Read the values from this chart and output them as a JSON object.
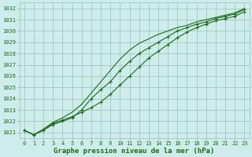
{
  "title": "Graphe pression niveau de la mer (hPa)",
  "x": [
    0,
    1,
    2,
    3,
    4,
    5,
    6,
    7,
    8,
    9,
    10,
    11,
    12,
    13,
    14,
    15,
    16,
    17,
    18,
    19,
    20,
    21,
    22,
    23
  ],
  "line1": [
    1021.2,
    1020.8,
    1021.2,
    1021.8,
    1022.1,
    1022.4,
    1022.8,
    1023.2,
    1023.7,
    1024.4,
    1025.2,
    1026.0,
    1026.8,
    1027.6,
    1028.2,
    1028.8,
    1029.4,
    1029.9,
    1030.3,
    1030.6,
    1030.9,
    1031.1,
    1031.3,
    1031.7
  ],
  "line2": [
    1021.2,
    1020.8,
    1021.2,
    1021.7,
    1022.0,
    1022.3,
    1023.0,
    1024.0,
    1024.8,
    1025.5,
    1026.5,
    1027.3,
    1028.0,
    1028.5,
    1029.0,
    1029.5,
    1030.0,
    1030.3,
    1030.6,
    1030.8,
    1031.1,
    1031.3,
    1031.5,
    1031.9
  ],
  "line3": [
    1021.2,
    1020.8,
    1021.3,
    1021.9,
    1022.3,
    1022.8,
    1023.5,
    1024.5,
    1025.5,
    1026.5,
    1027.5,
    1028.3,
    1028.9,
    1029.3,
    1029.7,
    1030.0,
    1030.3,
    1030.5,
    1030.8,
    1031.0,
    1031.2,
    1031.4,
    1031.6,
    1032.0
  ],
  "line_color": "#1a6b1a",
  "bg_color": "#ceecea",
  "grid_color": "#9dbfbc",
  "ylim": [
    1020.5,
    1032.5
  ],
  "yticks": [
    1021,
    1022,
    1023,
    1024,
    1025,
    1026,
    1027,
    1028,
    1029,
    1030,
    1031,
    1032
  ],
  "xticks": [
    0,
    1,
    2,
    3,
    4,
    5,
    6,
    7,
    8,
    9,
    10,
    11,
    12,
    13,
    14,
    15,
    16,
    17,
    18,
    19,
    20,
    21,
    22,
    23
  ],
  "title_fontsize": 6.5,
  "tick_fontsize": 5.0,
  "marker": "+",
  "marker_size": 3.5,
  "line_width": 0.8
}
